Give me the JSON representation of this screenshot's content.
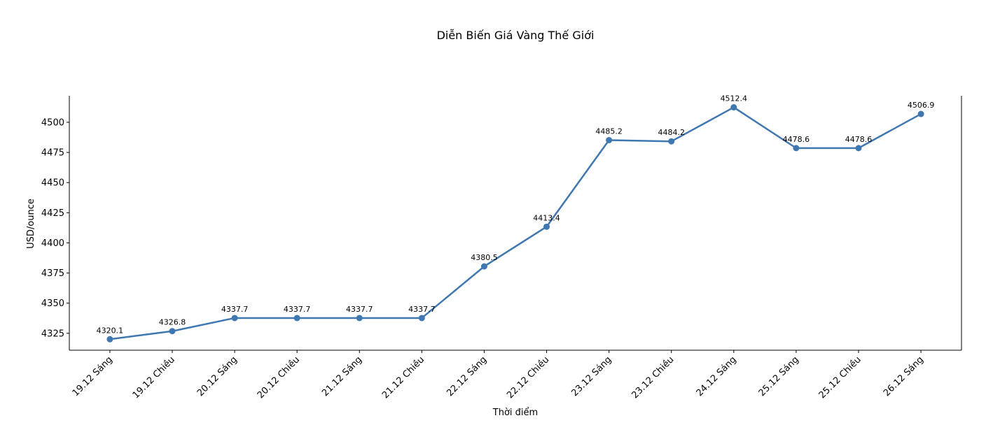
{
  "chart_data": {
    "type": "line",
    "title": "Diễn Biến Giá Vàng Thế Giới",
    "xlabel": "Thời điểm",
    "ylabel": "USD/ounce",
    "categories": [
      "19.12 Sáng",
      "19.12 Chiều",
      "20.12 Sáng",
      "20.12 Chiều",
      "21.12 Sáng",
      "21.12 Chiều",
      "22.12 Sáng",
      "22.12 Chiều",
      "23.12 Sáng",
      "23.12 Chiều",
      "24.12 Sáng",
      "25.12 Sáng",
      "25.12 Chiều",
      "26.12 Sáng"
    ],
    "values": [
      4320.1,
      4326.8,
      4337.7,
      4337.7,
      4337.7,
      4337.7,
      4380.5,
      4413.4,
      4485.2,
      4484.2,
      4512.4,
      4478.6,
      4478.6,
      4506.9
    ],
    "data_labels": [
      "4320.1",
      "4326.8",
      "4337.7",
      "4337.7",
      "4337.7",
      "4337.7",
      "4380.5",
      "4413.4",
      "4485.2",
      "4484.2",
      "4512.4",
      "4478.6",
      "4478.6",
      "4506.9"
    ],
    "yticks": [
      4325,
      4350,
      4375,
      4400,
      4425,
      4450,
      4475,
      4500
    ],
    "ylim": [
      4311,
      4522
    ],
    "grid": false,
    "markers": true,
    "line_color": "#3f78b0",
    "spines": [
      "left",
      "bottom",
      "right"
    ]
  }
}
